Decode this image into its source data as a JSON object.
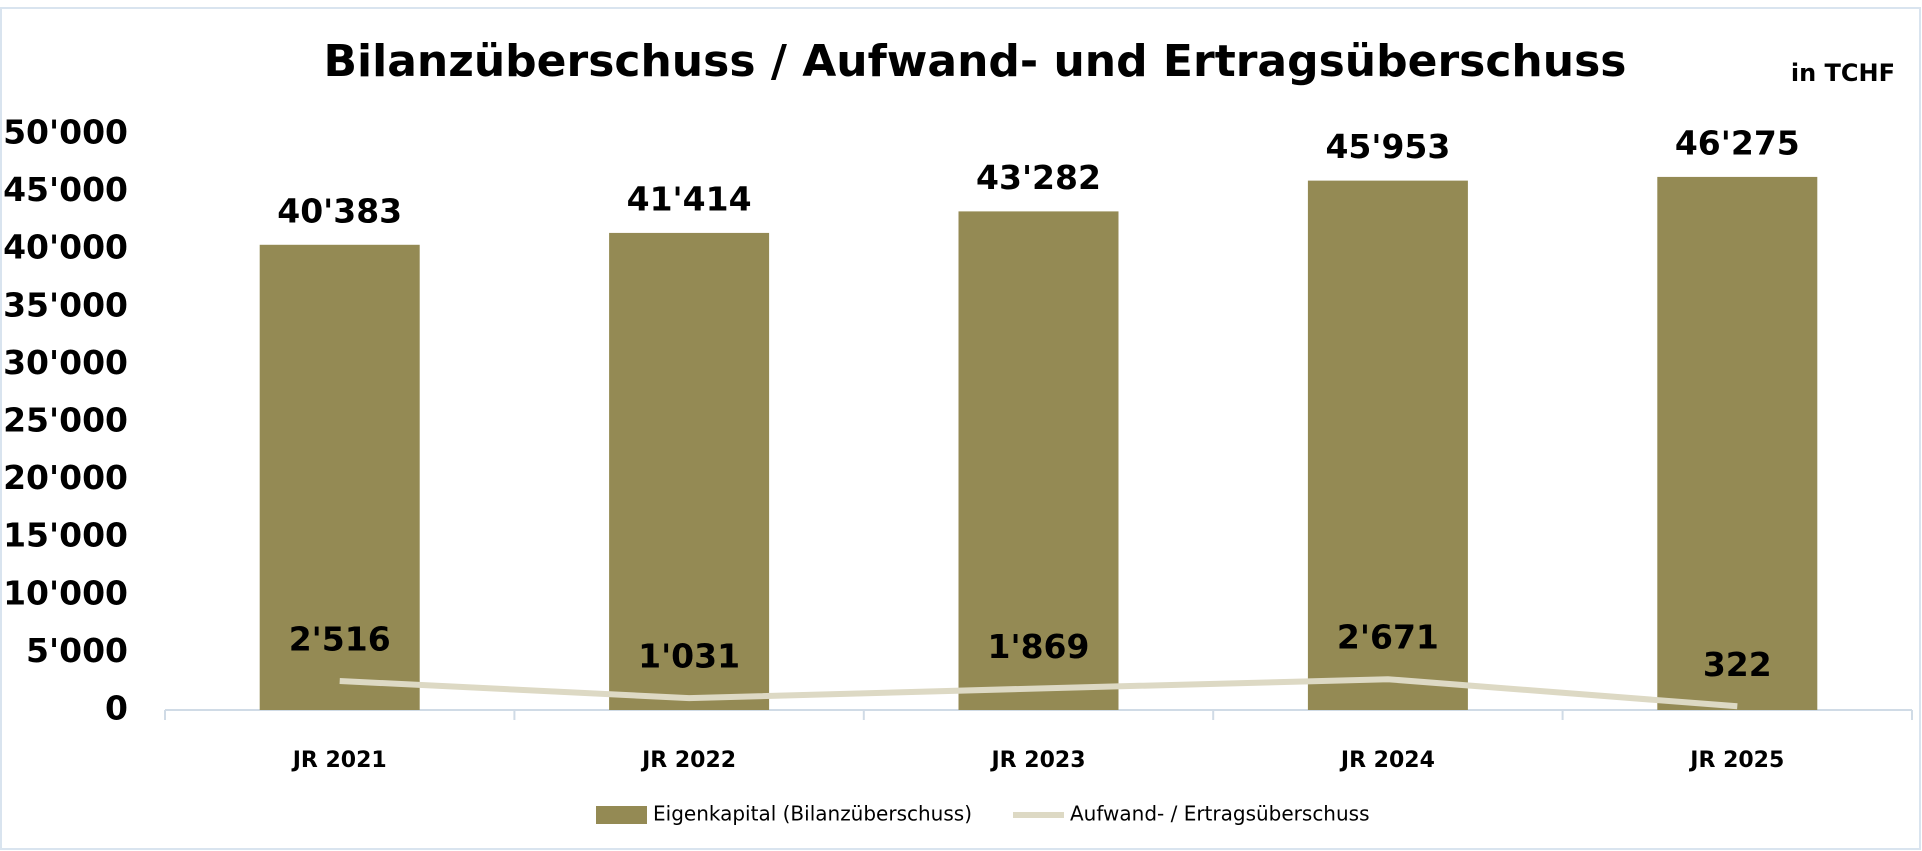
{
  "chart_data": {
    "type": "bar",
    "title": "Bilanzüberschuss / Aufwand- und Ertragsüberschuss",
    "subtitle": "in TCHF",
    "categories": [
      "JR 2021",
      "JR 2022",
      "JR 2023",
      "JR 2024",
      "JR 2025"
    ],
    "series": [
      {
        "name": "Eigenkapital (Bilanzüberschuss)",
        "type": "bar",
        "color": "#948a54",
        "values": [
          40383,
          41414,
          43282,
          45953,
          46275
        ],
        "value_labels": [
          "40'383",
          "41'414",
          "43'282",
          "45'953",
          "46'275"
        ]
      },
      {
        "name": "Aufwand- / Ertragsüberschuss",
        "type": "line",
        "color": "#ddd9c4",
        "values": [
          2516,
          1031,
          1869,
          2671,
          322
        ],
        "value_labels": [
          "2'516",
          "1'031",
          "1'869",
          "2'671",
          "322"
        ]
      }
    ],
    "ylim": [
      0,
      50000
    ],
    "yticks": [
      0,
      {
        "value": 5000,
        "label": "5'000"
      },
      {
        "value": 10000,
        "label": "10'000"
      },
      {
        "value": 15000,
        "label": "15'000"
      },
      {
        "value": 20000,
        "label": "20'000"
      },
      {
        "value": 25000,
        "label": "25'000"
      },
      {
        "value": 30000,
        "label": "30'000"
      },
      {
        "value": 35000,
        "label": "35'000"
      },
      {
        "value": 40000,
        "label": "40'000"
      },
      {
        "value": 45000,
        "label": "45'000"
      },
      {
        "value": 50000,
        "label": "50'000"
      }
    ],
    "grid": false,
    "legend": "bottom"
  }
}
